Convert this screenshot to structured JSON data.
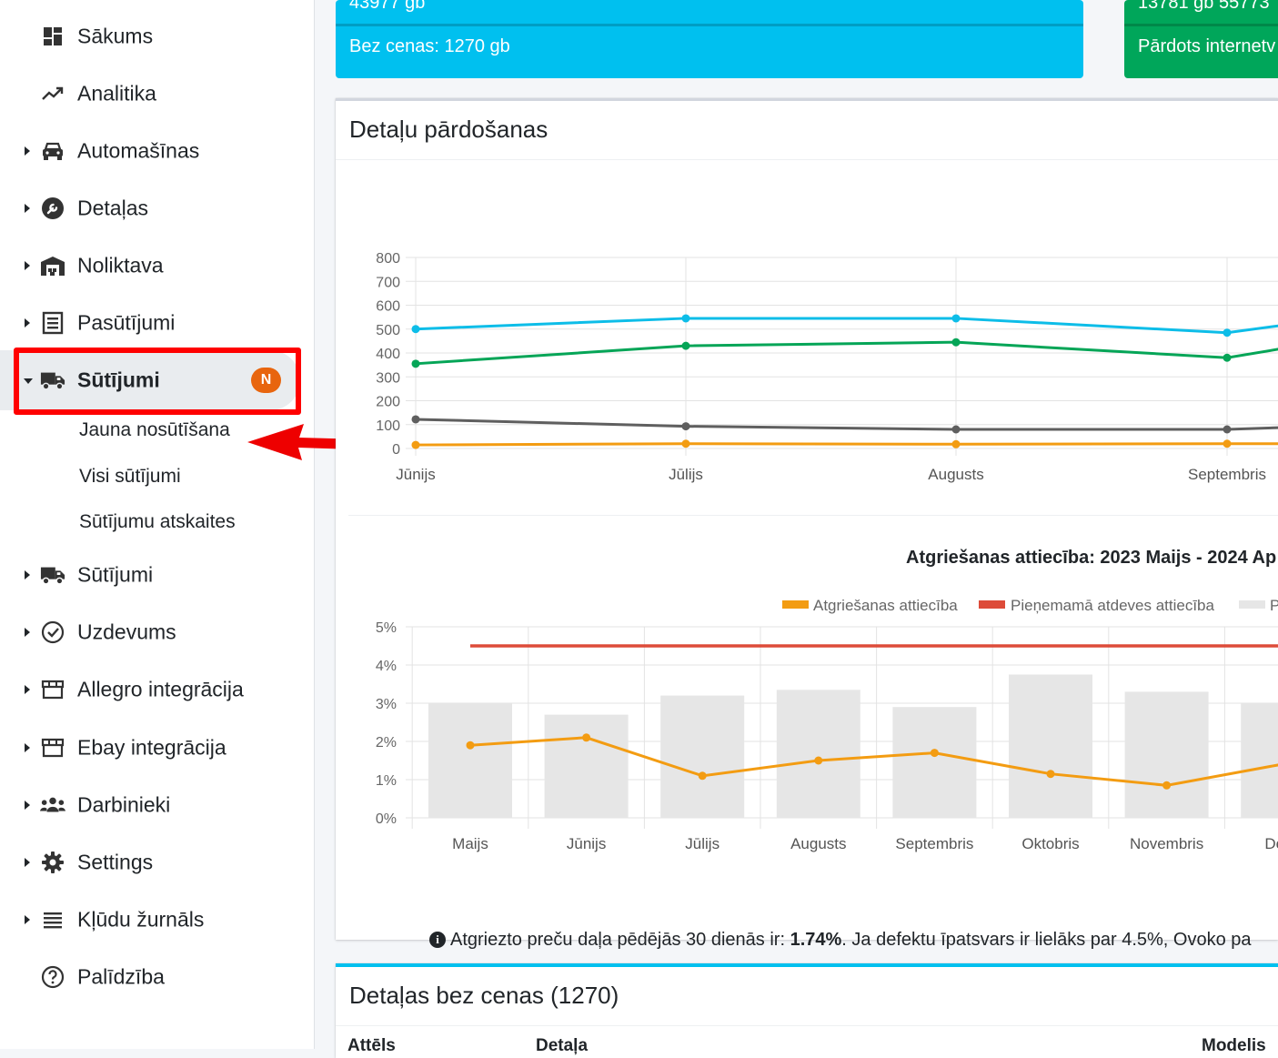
{
  "sidebar": {
    "items": [
      {
        "label": "Sākums",
        "icon": "dashboard-icon",
        "caret": false
      },
      {
        "label": "Analitika",
        "icon": "trending-up-icon",
        "caret": false
      },
      {
        "label": "Automašīnas",
        "icon": "car-icon",
        "caret": true
      },
      {
        "label": "Detaļas",
        "icon": "wrench-icon",
        "caret": true
      },
      {
        "label": "Noliktava",
        "icon": "warehouse-icon",
        "caret": true
      },
      {
        "label": "Pasūtījumi",
        "icon": "list-icon",
        "caret": true
      },
      {
        "label": "Sūtījumi",
        "icon": "truck-icon",
        "caret": true,
        "active": true,
        "badge": "N"
      },
      {
        "label": "Sūtījumi",
        "icon": "truck-icon",
        "caret": true
      },
      {
        "label": "Uzdevums",
        "icon": "check-circle-icon",
        "caret": true
      },
      {
        "label": "Allegro integrācija",
        "icon": "store-icon",
        "caret": true
      },
      {
        "label": "Ebay integrācija",
        "icon": "store-icon",
        "caret": true
      },
      {
        "label": "Darbinieki",
        "icon": "users-icon",
        "caret": true
      },
      {
        "label": "Settings",
        "icon": "gear-icon",
        "caret": true
      },
      {
        "label": "Kļūdu žurnāls",
        "icon": "log-icon",
        "caret": true
      },
      {
        "label": "Palīdzība",
        "icon": "help-icon",
        "caret": false
      }
    ],
    "sub_items": [
      "Jauna nosūtīšana",
      "Visi sūtījumi",
      "Sūtījumu atskaites"
    ]
  },
  "stats": {
    "blue": {
      "top": "43977 gb",
      "footer": "Bez cenas: 1270 gb",
      "color": "#00c0ef"
    },
    "green": {
      "top": "13781 gb 55773",
      "footer": "Pārdots internetv",
      "color": "#00a65a"
    }
  },
  "sales_card": {
    "title": "Detaļu pārdošanas"
  },
  "returns": {
    "note_prefix": "Atgriezto preču daļa pēdējās 30 dienās ir:",
    "note_value": "1.74%",
    "note_suffix": ". Ja defektu īpatsvars ir lielāks par 4.5%, Ovoko pa"
  },
  "bottom_card": {
    "title": "Detaļas bez cenas (1270)",
    "columns": [
      "Attēls",
      "Detaļa",
      "Modelis"
    ]
  },
  "chart_data": [
    {
      "type": "line",
      "title": "",
      "categories": [
        "Jūnijs",
        "Jūlijs",
        "Augusts",
        "Septembris"
      ],
      "ylim": [
        0,
        800
      ],
      "yticks": [
        "800",
        "700",
        "600",
        "500",
        "400",
        "300",
        "200",
        "100",
        "0"
      ],
      "grid": true,
      "series": [
        {
          "color": "#0dbde8",
          "values": [
            500,
            545,
            545,
            485
          ]
        },
        {
          "color": "#05a557",
          "values": [
            355,
            430,
            445,
            380
          ]
        },
        {
          "color": "#5f5f5f",
          "values": [
            122,
            93,
            80,
            80
          ]
        },
        {
          "color": "#f39c12",
          "values": [
            15,
            20,
            18,
            20
          ]
        }
      ]
    },
    {
      "type": "bar",
      "title": "Atgriešanas attiecība: 2023 Maijs - 2024 Ap",
      "categories": [
        "Maijs",
        "Jūnijs",
        "Jūlijs",
        "Augusts",
        "Septembris",
        "Oktobris",
        "Novembris",
        "Dece"
      ],
      "ylim": [
        0,
        5
      ],
      "yticks": [
        "5%",
        "4%",
        "3%",
        "2%",
        "1%",
        "0%"
      ],
      "grid": true,
      "legend": [
        {
          "name": "Atgriešanas attiecība",
          "color": "#f39c12"
        },
        {
          "name": "Pieņemamā atdeves attiecība",
          "color": "#dd4b39"
        },
        {
          "name": "P",
          "color": "#e6e6e6"
        }
      ],
      "series": [
        {
          "name": "Atgriešanas attiecība",
          "type": "line",
          "color": "#f39c12",
          "values": [
            1.9,
            2.1,
            1.1,
            1.5,
            1.7,
            1.15,
            0.85,
            1.4
          ]
        },
        {
          "name": "Pieņemamā atdeves attiecība",
          "type": "line",
          "color": "#dd4b39",
          "values": [
            4.5,
            4.5,
            4.5,
            4.5,
            4.5,
            4.5,
            4.5,
            4.5
          ]
        },
        {
          "name": "P",
          "type": "bar",
          "color": "#e6e6e6",
          "values": [
            3.0,
            2.7,
            3.2,
            3.35,
            2.9,
            3.75,
            3.3,
            3.0
          ]
        }
      ]
    }
  ]
}
